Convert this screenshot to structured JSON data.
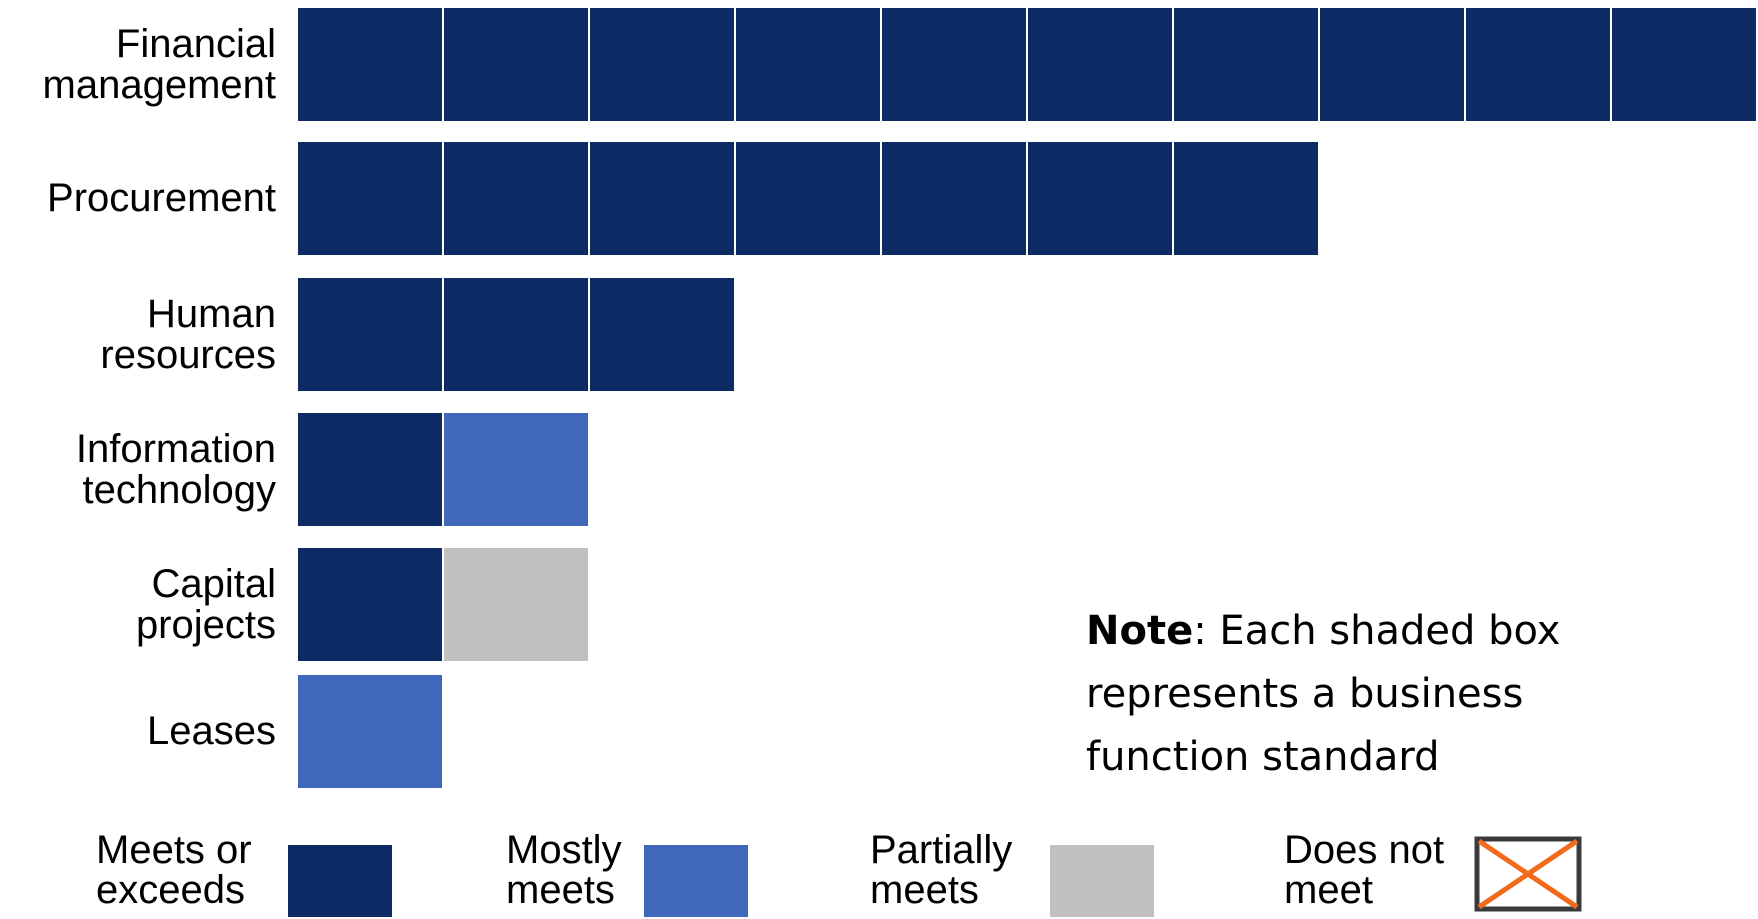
{
  "chart_data": {
    "type": "bar",
    "orientation": "horizontal",
    "unit_description": "Each shaded box represents a business function standard",
    "categories": [
      "Financial\nmanagement",
      "Procurement",
      "Human\nresources",
      "Information\ntechnology",
      "Capital\nprojects",
      "Leases"
    ],
    "rows": [
      {
        "label": "Financial\nmanagement",
        "boxes": [
          "meets",
          "meets",
          "meets",
          "meets",
          "meets",
          "meets",
          "meets",
          "meets",
          "meets",
          "meets"
        ]
      },
      {
        "label": "Procurement",
        "boxes": [
          "meets",
          "meets",
          "meets",
          "meets",
          "meets",
          "meets",
          "meets"
        ]
      },
      {
        "label": "Human\nresources",
        "boxes": [
          "meets",
          "meets",
          "meets"
        ]
      },
      {
        "label": "Information\ntechnology",
        "boxes": [
          "meets",
          "mostly"
        ]
      },
      {
        "label": "Capital\nprojects",
        "boxes": [
          "meets",
          "partial"
        ]
      },
      {
        "label": "Leases",
        "boxes": [
          "mostly"
        ]
      }
    ],
    "series": [
      {
        "name": "Meets or\nexceeds",
        "key": "meets",
        "values": [
          10,
          7,
          3,
          1,
          1,
          0
        ]
      },
      {
        "name": "Mostly\nmeets",
        "key": "mostly",
        "values": [
          0,
          0,
          0,
          1,
          0,
          1
        ]
      },
      {
        "name": "Partially\nmeets",
        "key": "partial",
        "values": [
          0,
          0,
          0,
          0,
          1,
          0
        ]
      },
      {
        "name": "Does not\nmeet",
        "key": "not",
        "values": [
          0,
          0,
          0,
          0,
          0,
          0
        ]
      }
    ],
    "legend_placement": "bottom",
    "grid": false
  },
  "colors": {
    "meets": "#0e2a64",
    "mostly": "#4169bb",
    "partial": "#c0c0c0",
    "not_border": "#3a3a3a",
    "not_cross": "#f26a1b"
  },
  "note": {
    "bold": "Note",
    "text": ": Each shaded box represents a business function standard"
  },
  "legend": [
    {
      "key": "meets",
      "label": "Meets or\nexceeds"
    },
    {
      "key": "mostly",
      "label": "Mostly\nmeets"
    },
    {
      "key": "partial",
      "label": "Partially\nmeets"
    },
    {
      "key": "not",
      "label": "Does not\nmeet"
    }
  ]
}
